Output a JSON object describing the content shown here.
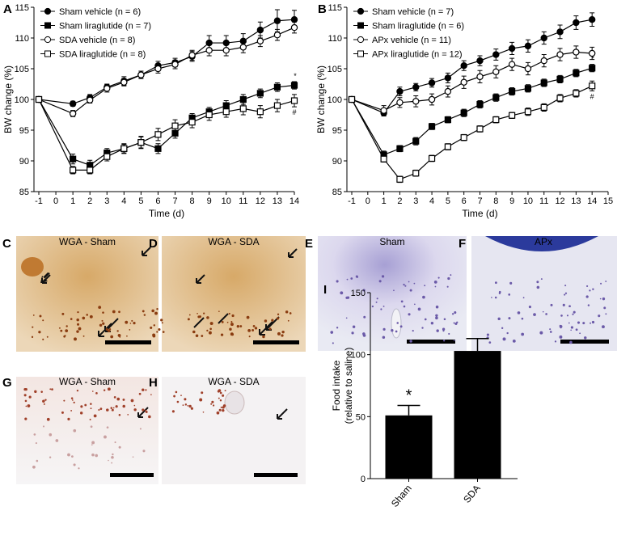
{
  "chart_data": [
    {
      "type": "line",
      "label": "A",
      "xlabel": "Time (d)",
      "ylabel": "BW change (%)",
      "x": [
        -1,
        1,
        2,
        3,
        4,
        5,
        6,
        7,
        8,
        9,
        10,
        11,
        12,
        13,
        14
      ],
      "xlim": [
        -1,
        14
      ],
      "xticks": [
        -1,
        0,
        1,
        2,
        3,
        4,
        5,
        6,
        7,
        8,
        9,
        10,
        11,
        12,
        13,
        14
      ],
      "ylim": [
        85,
        115
      ],
      "yticks": [
        85,
        90,
        95,
        100,
        105,
        110,
        115
      ],
      "series": [
        {
          "name": "Sham vehicle (n = 6)",
          "color": "#000",
          "marker": "circle",
          "filled": true,
          "values": [
            100,
            99.3,
            100.3,
            102,
            103,
            104,
            105.5,
            106,
            107,
            109.2,
            109.2,
            109.5,
            111.3,
            112.8,
            113
          ],
          "errors": [
            0,
            0.4,
            0.5,
            0.5,
            0.7,
            0.6,
            0.7,
            0.7,
            0.8,
            1.2,
            1.2,
            1.2,
            1.3,
            1.8,
            1.5
          ]
        },
        {
          "name": "Sham liraglutide (n = 7)",
          "color": "#000",
          "marker": "square",
          "filled": true,
          "values": [
            100,
            90.3,
            89.3,
            91.3,
            92,
            93,
            92,
            94.5,
            97,
            98,
            99,
            100,
            101,
            102,
            102.3
          ],
          "errors": [
            0,
            0.8,
            0.8,
            0.7,
            0.7,
            0.9,
            0.8,
            0.8,
            0.7,
            0.7,
            0.8,
            0.8,
            0.7,
            0.7,
            0.6
          ]
        },
        {
          "name": "SDA vehicle (n = 8)",
          "color": "#000",
          "marker": "circle",
          "filled": false,
          "values": [
            100,
            97.7,
            99.9,
            101.8,
            102.8,
            104,
            105,
            105.7,
            107.2,
            108,
            108,
            108.5,
            109.5,
            110.5,
            111.7
          ],
          "errors": [
            0,
            0.5,
            0.5,
            0.6,
            0.6,
            0.6,
            0.7,
            0.7,
            0.8,
            0.9,
            0.9,
            0.9,
            0.9,
            0.9,
            0.9
          ]
        },
        {
          "name": "SDA liraglutide (n = 8)",
          "color": "#000",
          "marker": "square",
          "filled": false,
          "values": [
            100,
            88.5,
            88.5,
            90.7,
            92,
            93,
            94.3,
            95.7,
            96.3,
            97.5,
            98,
            98.5,
            98,
            99,
            99.8
          ],
          "errors": [
            0,
            0.6,
            0.6,
            0.7,
            0.8,
            1,
            1,
            1,
            0.9,
            0.9,
            0.9,
            1,
            1,
            1,
            1
          ]
        }
      ],
      "annotations": [
        "*",
        "#"
      ]
    },
    {
      "type": "line",
      "label": "B",
      "xlabel": "Time (d)",
      "ylabel": "BW change (%)",
      "x": [
        -1,
        1,
        2,
        3,
        4,
        5,
        6,
        7,
        8,
        9,
        10,
        11,
        12,
        13,
        14
      ],
      "xlim": [
        -1,
        15
      ],
      "xticks": [
        -1,
        0,
        1,
        2,
        3,
        4,
        5,
        6,
        7,
        8,
        9,
        10,
        11,
        12,
        13,
        14,
        15
      ],
      "ylim": [
        85,
        115
      ],
      "yticks": [
        85,
        90,
        95,
        100,
        105,
        110,
        115
      ],
      "series": [
        {
          "name": "Sham vehicle (n = 7)",
          "color": "#000",
          "marker": "circle",
          "filled": true,
          "values": [
            100,
            97.8,
            101.3,
            102,
            102.7,
            103.5,
            105.5,
            106.3,
            107.3,
            108.3,
            108.7,
            110,
            111,
            112.5,
            113
          ],
          "errors": [
            0,
            0.5,
            0.7,
            0.6,
            0.7,
            0.8,
            0.8,
            0.8,
            0.9,
            1,
            1,
            1,
            1.1,
            1.1,
            1.1
          ]
        },
        {
          "name": "Sham liraglutide (n = 6)",
          "color": "#000",
          "marker": "square",
          "filled": true,
          "values": [
            100,
            91,
            92,
            93.2,
            95.6,
            96.7,
            97.8,
            99.2,
            100.3,
            101.3,
            101.8,
            102.7,
            103.3,
            104.3,
            105.1
          ],
          "errors": [
            0,
            0.6,
            0.5,
            0.6,
            0.5,
            0.5,
            0.6,
            0.6,
            0.6,
            0.6,
            0.6,
            0.6,
            0.6,
            0.6,
            0.6
          ]
        },
        {
          "name": "APx vehicle (n = 11)",
          "color": "#000",
          "marker": "circle",
          "filled": false,
          "values": [
            100,
            98.2,
            99.5,
            99.7,
            100,
            101.3,
            102.8,
            103.7,
            104.5,
            105.7,
            105,
            106.3,
            107.3,
            107.7,
            107.5
          ],
          "errors": [
            0,
            0.8,
            0.8,
            0.9,
            0.9,
            0.9,
            1,
            1,
            1,
            1,
            1,
            1,
            1,
            1,
            1
          ]
        },
        {
          "name": "APx liraglutide (n = 12)",
          "color": "#000",
          "marker": "square",
          "filled": false,
          "values": [
            100,
            90.3,
            87,
            88,
            90.4,
            92.3,
            93.8,
            95.2,
            96.7,
            97.4,
            98,
            98.7,
            100.2,
            101,
            102.2
          ],
          "errors": [
            0,
            0.5,
            0.5,
            0.5,
            0.5,
            0.5,
            0.5,
            0.5,
            0.5,
            0.5,
            0.6,
            0.6,
            0.6,
            0.6,
            0.8
          ]
        }
      ],
      "annotations": [
        "*",
        "#"
      ]
    },
    {
      "type": "bar",
      "label": "I",
      "ylabel": [
        "Food intake",
        "(relative to saline)"
      ],
      "categories": [
        "Sham",
        "SDA"
      ],
      "values": [
        51,
        103
      ],
      "errors": [
        8,
        10
      ],
      "color": "#000",
      "ylim": [
        0,
        150
      ],
      "yticks": [
        0,
        50,
        100,
        150
      ],
      "annotations": [
        "*"
      ]
    }
  ],
  "images": [
    {
      "label": "C",
      "caption": "WGA - Sham"
    },
    {
      "label": "D",
      "caption": "WGA - SDA"
    },
    {
      "label": "E",
      "caption": "Sham"
    },
    {
      "label": "F",
      "caption": "APx"
    },
    {
      "label": "G",
      "caption": "WGA - Sham"
    },
    {
      "label": "H",
      "caption": "WGA - SDA"
    }
  ]
}
